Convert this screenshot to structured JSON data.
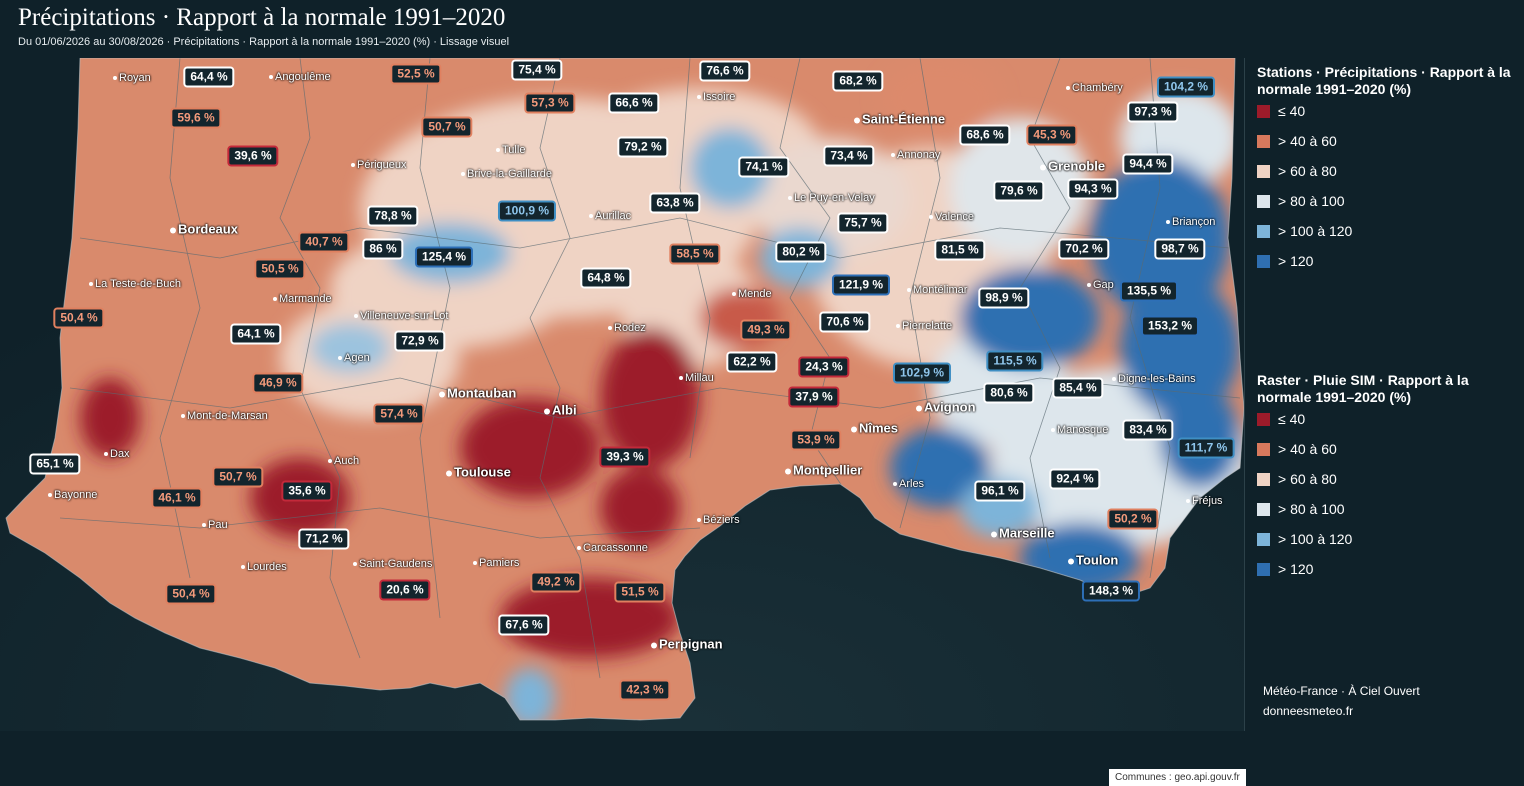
{
  "header": {
    "title": "Précipitations · Rapport à la normale 1991–2020",
    "subtitle": "Du 01/06/2026 au 30/08/2026 · Précipitations · Rapport à la normale 1991–2020 (%) · Lissage visuel"
  },
  "classes": [
    {
      "label": "≤ 40",
      "color": "#9c1b2a",
      "border": "#c3293a",
      "text": "#ffffff"
    },
    {
      "label": "> 40 à 60",
      "color": "#d7795d",
      "border": "#e0805f",
      "text": "#f39a7b"
    },
    {
      "label": "> 60 à 80",
      "color": "#efd3c4",
      "border": "#ffffff",
      "text": "#ffffff"
    },
    {
      "label": "> 80 à 100",
      "color": "#dde6ec",
      "border": "#ffffff",
      "text": "#ffffff"
    },
    {
      "label": "> 100 à 120",
      "color": "#7db4d9",
      "border": "#3f8fc4",
      "text": "#8fc6ec"
    },
    {
      "label": "> 120",
      "color": "#2f6fb1",
      "border": "#2d6fb7",
      "text": "#ffffff"
    }
  ],
  "legend": {
    "stations_title": "Stations · Précipitations · Rapport à la normale 1991–2020 (%)",
    "raster_title": "Raster · Pluie SIM · Rapport à la normale 1991–2020 (%)",
    "credit_line1": "Météo-France · À Ciel Ouvert",
    "credit_line2": "donneesmeteo.fr"
  },
  "map_attribution": "Communes : geo.api.gouv.fr",
  "cities": [
    {
      "name": "Royan"
    },
    {
      "name": "Angoulême"
    },
    {
      "name": "Issoire"
    },
    {
      "name": "Chambéry"
    },
    {
      "name": "Saint-Étienne",
      "major": true
    },
    {
      "name": "Tulle"
    },
    {
      "name": "Annonay"
    },
    {
      "name": "Périgueux"
    },
    {
      "name": "Brive-la-Gaillarde"
    },
    {
      "name": "Grenoble",
      "major": true
    },
    {
      "name": "Le Puy-en-Velay"
    },
    {
      "name": "Bordeaux",
      "major": true
    },
    {
      "name": "Aurillac"
    },
    {
      "name": "Valence"
    },
    {
      "name": "Briançon"
    },
    {
      "name": "La Teste-de-Buch"
    },
    {
      "name": "Gap"
    },
    {
      "name": "Mende"
    },
    {
      "name": "Marmande"
    },
    {
      "name": "Montélimar"
    },
    {
      "name": "Villeneuve-sur-Lot"
    },
    {
      "name": "Rodez"
    },
    {
      "name": "Pierrelatte"
    },
    {
      "name": "Agen"
    },
    {
      "name": "Millau"
    },
    {
      "name": "Digne-les-Bains"
    },
    {
      "name": "Montauban",
      "major": true
    },
    {
      "name": "Avignon",
      "major": true
    },
    {
      "name": "Albi",
      "major": true
    },
    {
      "name": "Mont-de-Marsan"
    },
    {
      "name": "Nîmes",
      "major": true
    },
    {
      "name": "Manosque"
    },
    {
      "name": "Dax"
    },
    {
      "name": "Auch"
    },
    {
      "name": "Toulouse",
      "major": true
    },
    {
      "name": "Montpellier",
      "major": true
    },
    {
      "name": "Arles"
    },
    {
      "name": "Bayonne"
    },
    {
      "name": "Fréjus"
    },
    {
      "name": "Pau"
    },
    {
      "name": "Béziers"
    },
    {
      "name": "Marseille",
      "major": true
    },
    {
      "name": "Carcassonne"
    },
    {
      "name": "Lourdes"
    },
    {
      "name": "Saint-Gaudens"
    },
    {
      "name": "Pamiers"
    },
    {
      "name": "Toulon",
      "major": true
    },
    {
      "name": "Perpignan",
      "major": true
    }
  ],
  "stations": [
    {
      "value": "64,4 %",
      "cls": 2
    },
    {
      "value": "52,5 %",
      "cls": 1
    },
    {
      "value": "75,4 %",
      "cls": 2
    },
    {
      "value": "76,6 %",
      "cls": 2
    },
    {
      "value": "68,2 %",
      "cls": 2
    },
    {
      "value": "104,2 %",
      "cls": 4
    },
    {
      "value": "57,3 %",
      "cls": 1
    },
    {
      "value": "66,6 %",
      "cls": 2
    },
    {
      "value": "59,6 %",
      "cls": 1
    },
    {
      "value": "50,7 %",
      "cls": 1
    },
    {
      "value": "97,3 %",
      "cls": 3
    },
    {
      "value": "68,6 %",
      "cls": 2
    },
    {
      "value": "45,3 %",
      "cls": 1
    },
    {
      "value": "39,6 %",
      "cls": 0
    },
    {
      "value": "79,2 %",
      "cls": 2
    },
    {
      "value": "73,4 %",
      "cls": 2
    },
    {
      "value": "74,1 %",
      "cls": 2
    },
    {
      "value": "94,4 %",
      "cls": 3
    },
    {
      "value": "79,6 %",
      "cls": 2
    },
    {
      "value": "94,3 %",
      "cls": 3
    },
    {
      "value": "63,8 %",
      "cls": 2
    },
    {
      "value": "100,9 %",
      "cls": 4
    },
    {
      "value": "78,8 %",
      "cls": 2
    },
    {
      "value": "75,7 %",
      "cls": 2
    },
    {
      "value": "40,7 %",
      "cls": 1
    },
    {
      "value": "86 %",
      "cls": 3
    },
    {
      "value": "125,4 %",
      "cls": 5
    },
    {
      "value": "58,5 %",
      "cls": 1
    },
    {
      "value": "80,2 %",
      "cls": 3
    },
    {
      "value": "81,5 %",
      "cls": 3
    },
    {
      "value": "70,2 %",
      "cls": 2
    },
    {
      "value": "98,7 %",
      "cls": 3
    },
    {
      "value": "50,5 %",
      "cls": 1
    },
    {
      "value": "64,8 %",
      "cls": 2
    },
    {
      "value": "121,9 %",
      "cls": 5
    },
    {
      "value": "135,5 %",
      "cls": 5
    },
    {
      "value": "98,9 %",
      "cls": 3
    },
    {
      "value": "50,4 %",
      "cls": 1
    },
    {
      "value": "153,2 %",
      "cls": 5
    },
    {
      "value": "70,6 %",
      "cls": 2
    },
    {
      "value": "64,1 %",
      "cls": 2
    },
    {
      "value": "72,9 %",
      "cls": 2
    },
    {
      "value": "49,3 %",
      "cls": 1
    },
    {
      "value": "115,5 %",
      "cls": 4
    },
    {
      "value": "62,2 %",
      "cls": 2
    },
    {
      "value": "24,3 %",
      "cls": 0
    },
    {
      "value": "102,9 %",
      "cls": 4
    },
    {
      "value": "46,9 %",
      "cls": 1
    },
    {
      "value": "85,4 %",
      "cls": 3
    },
    {
      "value": "80,6 %",
      "cls": 3
    },
    {
      "value": "37,9 %",
      "cls": 0
    },
    {
      "value": "57,4 %",
      "cls": 1
    },
    {
      "value": "83,4 %",
      "cls": 3
    },
    {
      "value": "53,9 %",
      "cls": 1
    },
    {
      "value": "39,3 %",
      "cls": 0
    },
    {
      "value": "111,7 %",
      "cls": 4
    },
    {
      "value": "65,1 %",
      "cls": 2
    },
    {
      "value": "50,7 %",
      "cls": 1
    },
    {
      "value": "35,6 %",
      "cls": 0
    },
    {
      "value": "92,4 %",
      "cls": 3
    },
    {
      "value": "46,1 %",
      "cls": 1
    },
    {
      "value": "96,1 %",
      "cls": 3
    },
    {
      "value": "50,2 %",
      "cls": 1
    },
    {
      "value": "71,2 %",
      "cls": 2
    },
    {
      "value": "49,2 %",
      "cls": 1
    },
    {
      "value": "51,5 %",
      "cls": 1
    },
    {
      "value": "50,4 %",
      "cls": 1
    },
    {
      "value": "20,6 %",
      "cls": 0
    },
    {
      "value": "148,3 %",
      "cls": 5
    },
    {
      "value": "67,6 %",
      "cls": 2
    },
    {
      "value": "42,3 %",
      "cls": 1
    }
  ]
}
